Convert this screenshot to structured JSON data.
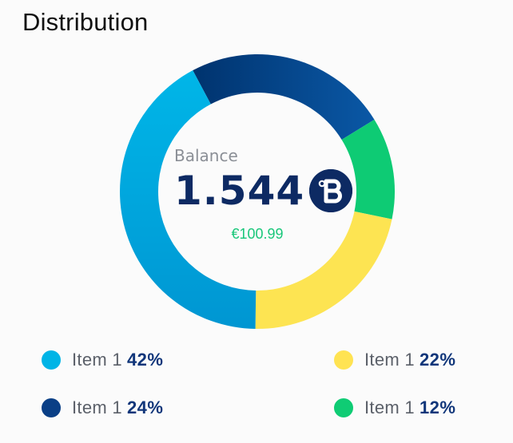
{
  "header": {
    "title": "Distribution"
  },
  "balance": {
    "label": "Balance",
    "value": "1.544",
    "fiat": "€100.99",
    "coin_icon": "coin-b-icon"
  },
  "chart_data": {
    "type": "donut",
    "series": [
      {
        "label": "Item 1",
        "value": 24,
        "percent_text": "24%",
        "color": "#06458f",
        "color2": "#00336f"
      },
      {
        "label": "Item 1",
        "value": 12,
        "percent_text": "12%",
        "color": "#0ecb74",
        "color2": "#05c16b"
      },
      {
        "label": "Item 1",
        "value": 22,
        "percent_text": "22%",
        "color": "#fde452",
        "color2": "#fcd93f"
      },
      {
        "label": "Item 1",
        "value": 42,
        "percent_text": "42%",
        "color": "#00b0e4",
        "color2": "#0097d4"
      }
    ]
  },
  "legend": [
    {
      "label": "Item 1",
      "percent": "42%",
      "color": "#00b4e6"
    },
    {
      "label": "Item 1",
      "percent": "22%",
      "color": "#ffe352"
    },
    {
      "label": "Item 1",
      "percent": "24%",
      "color": "#0a3f86"
    },
    {
      "label": "Item 1",
      "percent": "12%",
      "color": "#0fcc74"
    }
  ]
}
